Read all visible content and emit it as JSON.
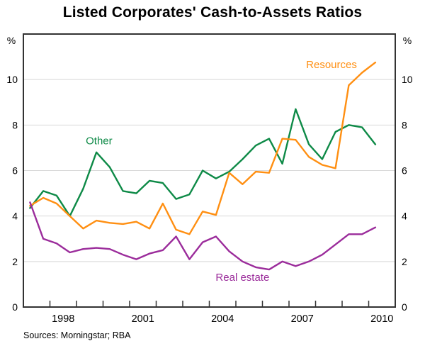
{
  "title": "Listed Corporates' Cash-to-Assets Ratios",
  "source_note": "Sources: Morningstar; RBA",
  "y_axis": {
    "unit": "%",
    "tick_labels": [
      0,
      2,
      4,
      6,
      8,
      10
    ],
    "min": 0,
    "max": 12,
    "sides": "both"
  },
  "x_axis": {
    "start": 1997,
    "end": 2011,
    "tick_years": [
      1998,
      1999,
      2000,
      2001,
      2002,
      2003,
      2004,
      2005,
      2006,
      2007,
      2008,
      2009,
      2010
    ],
    "label_years": [
      1998,
      2001,
      2004,
      2007,
      2010
    ]
  },
  "chart_data": {
    "type": "line",
    "frequency": "semiannual",
    "grid": "horizontal-only",
    "legend_position": "inline-labels",
    "x": [
      1997.25,
      1997.75,
      1998.25,
      1998.75,
      1999.25,
      1999.75,
      2000.25,
      2000.75,
      2001.25,
      2001.75,
      2002.25,
      2002.75,
      2003.25,
      2003.75,
      2004.25,
      2004.75,
      2005.25,
      2005.75,
      2006.25,
      2006.75,
      2007.25,
      2007.75,
      2008.25,
      2008.75,
      2009.25,
      2009.75,
      2010.25
    ],
    "series": [
      {
        "name": "Other",
        "color": "#0E8A47",
        "values": [
          4.35,
          5.1,
          4.9,
          4.0,
          5.2,
          6.8,
          6.15,
          5.1,
          5.0,
          5.55,
          5.45,
          4.75,
          4.95,
          6.0,
          5.65,
          5.95,
          6.5,
          7.1,
          7.4,
          6.3,
          8.7,
          7.15,
          6.5,
          7.7,
          8.0,
          7.9,
          7.15
        ]
      },
      {
        "name": "Resources",
        "color": "#FF8F12",
        "values": [
          4.45,
          4.8,
          4.55,
          4.0,
          3.45,
          3.8,
          3.7,
          3.65,
          3.75,
          3.45,
          4.55,
          3.4,
          3.2,
          4.2,
          4.05,
          5.9,
          5.4,
          5.95,
          5.9,
          7.4,
          7.35,
          6.6,
          6.25,
          6.1,
          9.75,
          10.3,
          10.75
        ]
      },
      {
        "name": "Real estate",
        "color": "#9B2C9B",
        "values": [
          4.6,
          3.0,
          2.8,
          2.4,
          2.55,
          2.6,
          2.55,
          2.3,
          2.1,
          2.35,
          2.5,
          3.1,
          2.1,
          2.85,
          3.1,
          2.45,
          2.0,
          1.75,
          1.65,
          2.0,
          1.8,
          2.0,
          2.3,
          2.75,
          3.2,
          3.2,
          3.5
        ]
      }
    ],
    "labels": [
      {
        "text": "Other",
        "series": 0,
        "x": 1999.85,
        "y": 7.15
      },
      {
        "text": "Resources",
        "series": 1,
        "x": 2008.6,
        "y": 10.5
      },
      {
        "text": "Real estate",
        "series": 2,
        "x": 2005.25,
        "y": 1.15
      }
    ],
    "title": "Listed Corporates' Cash-to-Assets Ratios",
    "xlabel": "",
    "ylabel": "%",
    "ylim": [
      0,
      12
    ]
  },
  "style": {
    "grid_color": "#D8D8D8",
    "frame_color": "#333333",
    "background": "#FFFFFF"
  }
}
